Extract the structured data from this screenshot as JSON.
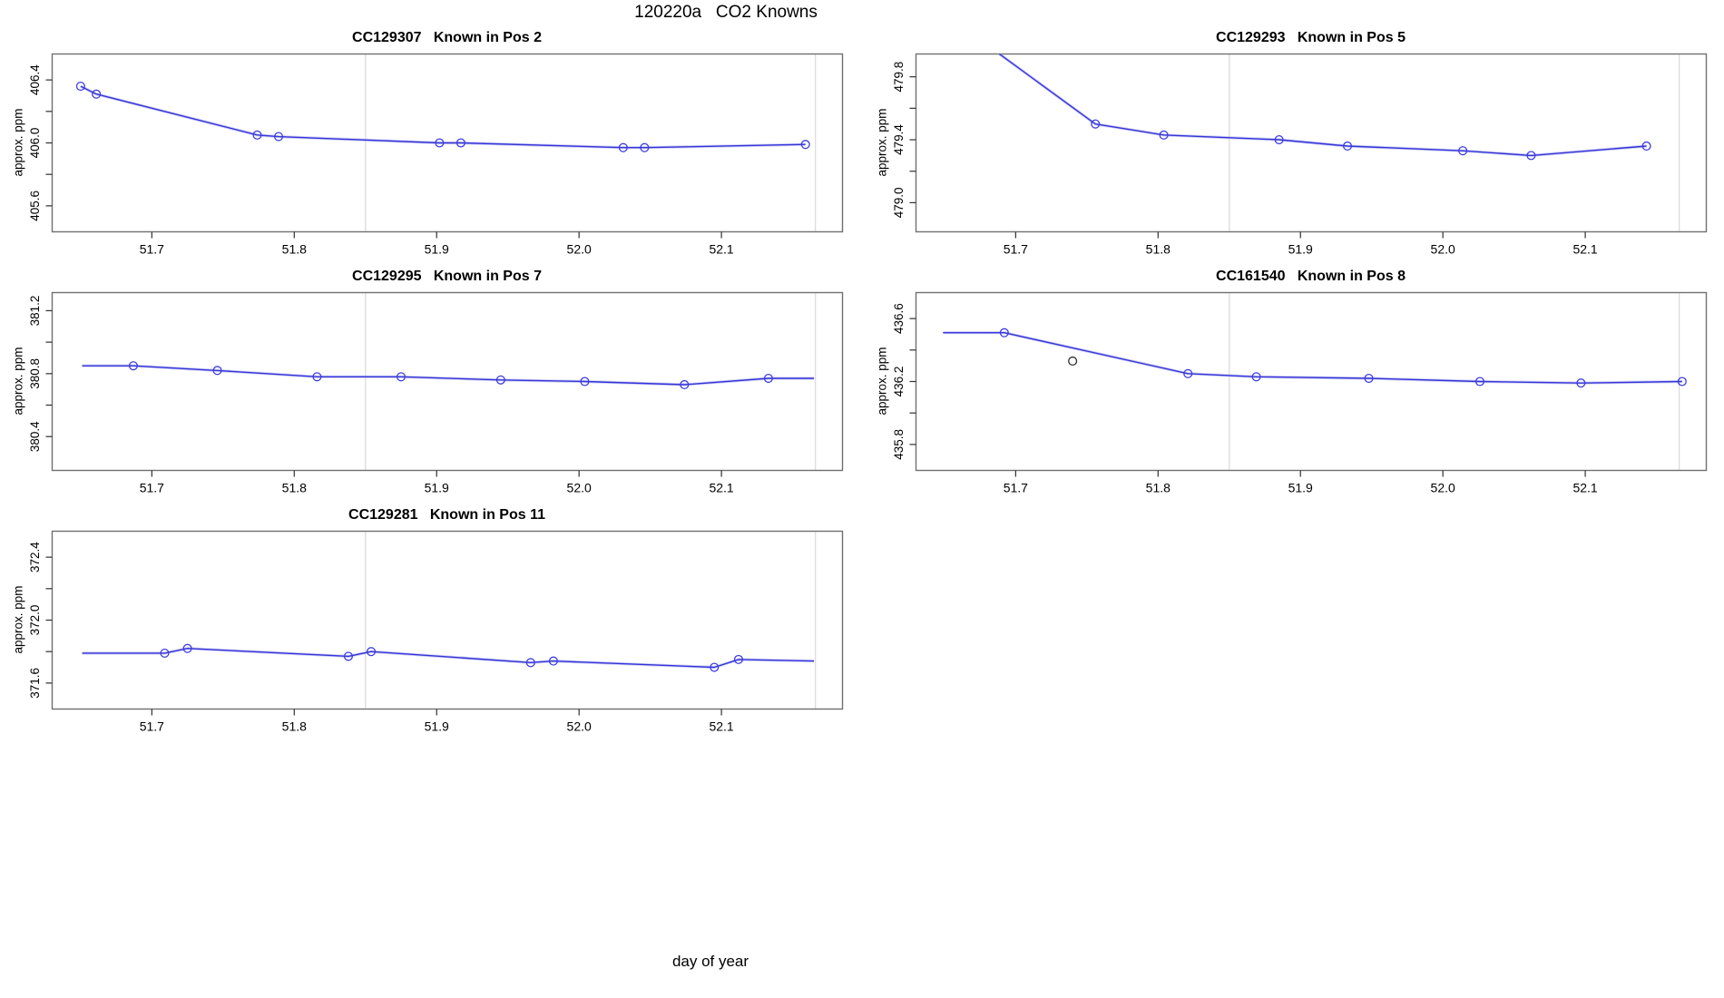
{
  "page_title": "120220a   CO2 Knowns",
  "xlabel": "day of year",
  "ylabel": "approx. ppm",
  "colors": {
    "line": "#3434d6",
    "line_soft": "#a8a8f0",
    "marker": "#3e3ede",
    "outlier": "#2a2a2a",
    "refline": "#dcdcdc",
    "border": "#707070",
    "tick": "#303030",
    "text": "#000000"
  },
  "axis": {
    "xlim": [
      51.63,
      52.185
    ],
    "xticks": [
      {
        "v": 51.7,
        "label": "51.7"
      },
      {
        "v": 51.8,
        "label": "51.8"
      },
      {
        "v": 51.9,
        "label": "51.9"
      },
      {
        "v": 52.0,
        "label": "52.0"
      },
      {
        "v": 52.1,
        "label": "52.1"
      }
    ],
    "reference_days": [
      51.85,
      52.166
    ]
  },
  "chart_data": [
    {
      "type": "line",
      "title": "CC129307   Known in Pos 2",
      "row": 0,
      "col": 0,
      "ylim": [
        405.435,
        406.565
      ],
      "yticks": [
        {
          "v": 405.6,
          "label": "405.6"
        },
        {
          "v": 405.8,
          "label": ""
        },
        {
          "v": 406.0,
          "label": "406.0"
        },
        {
          "v": 406.2,
          "label": ""
        },
        {
          "v": 406.4,
          "label": "406.4"
        }
      ],
      "points": {
        "x": [
          51.65,
          51.661,
          51.774,
          51.789,
          51.902,
          51.917,
          52.031,
          52.046,
          52.159
        ],
        "y": [
          406.36,
          406.31,
          406.05,
          406.04,
          406.0,
          406.0,
          405.97,
          405.97,
          405.99
        ]
      },
      "line": {
        "x": [
          51.65,
          51.661,
          51.774,
          51.789,
          51.902,
          51.917,
          52.031,
          52.046,
          52.159
        ],
        "y": [
          406.36,
          406.31,
          406.05,
          406.04,
          406.0,
          406.0,
          405.97,
          405.97,
          405.99
        ]
      },
      "outliers": []
    },
    {
      "type": "line",
      "title": "CC129293   Known in Pos 5",
      "row": 0,
      "col": 1,
      "ylim": [
        478.815,
        479.945
      ],
      "yticks": [
        {
          "v": 479.0,
          "label": "479.0"
        },
        {
          "v": 479.2,
          "label": ""
        },
        {
          "v": 479.4,
          "label": "479.4"
        },
        {
          "v": 479.6,
          "label": ""
        },
        {
          "v": 479.8,
          "label": "479.8"
        }
      ],
      "points": {
        "x": [
          51.756,
          51.804,
          51.885,
          51.933,
          52.014,
          52.062,
          52.143
        ],
        "y": [
          479.5,
          479.43,
          479.4,
          479.36,
          479.33,
          479.3,
          479.36
        ]
      },
      "line": {
        "x": [
          51.65,
          51.756,
          51.804,
          51.885,
          51.933,
          52.014,
          52.062,
          52.143
        ],
        "y": [
          480.2,
          479.5,
          479.43,
          479.4,
          479.36,
          479.33,
          479.3,
          479.36
        ]
      },
      "outliers": []
    },
    {
      "type": "line",
      "title": "CC129295   Known in Pos 7",
      "row": 1,
      "col": 0,
      "ylim": [
        380.185,
        381.315
      ],
      "yticks": [
        {
          "v": 380.4,
          "label": "380.4"
        },
        {
          "v": 380.6,
          "label": ""
        },
        {
          "v": 380.8,
          "label": "380.8"
        },
        {
          "v": 381.0,
          "label": ""
        },
        {
          "v": 381.2,
          "label": "381.2"
        }
      ],
      "points": {
        "x": [
          51.687,
          51.746,
          51.816,
          51.875,
          51.945,
          52.004,
          52.074,
          52.133
        ],
        "y": [
          380.85,
          380.82,
          380.78,
          380.78,
          380.76,
          380.75,
          380.73,
          380.77
        ]
      },
      "line": {
        "x": [
          51.651,
          51.687,
          51.746,
          51.816,
          51.875,
          51.945,
          52.004,
          52.074,
          52.133,
          52.165
        ],
        "y": [
          380.85,
          380.85,
          380.82,
          380.78,
          380.78,
          380.76,
          380.75,
          380.73,
          380.77,
          380.77
        ]
      },
      "outliers": []
    },
    {
      "type": "line",
      "title": "CC161540   Known in Pos 8",
      "row": 1,
      "col": 1,
      "ylim": [
        435.635,
        436.765
      ],
      "yticks": [
        {
          "v": 435.8,
          "label": "435.8"
        },
        {
          "v": 436.0,
          "label": ""
        },
        {
          "v": 436.2,
          "label": "436.2"
        },
        {
          "v": 436.4,
          "label": ""
        },
        {
          "v": 436.6,
          "label": "436.6"
        }
      ],
      "points": {
        "x": [
          51.692,
          51.821,
          51.869,
          51.948,
          52.026,
          52.097,
          52.168
        ],
        "y": [
          436.51,
          436.25,
          436.23,
          436.22,
          436.2,
          436.19,
          436.2
        ]
      },
      "line": {
        "x": [
          51.649,
          51.692,
          51.821,
          51.869,
          51.948,
          52.026,
          52.097,
          52.168
        ],
        "y": [
          436.51,
          436.51,
          436.25,
          436.23,
          436.22,
          436.2,
          436.19,
          436.2
        ]
      },
      "outliers": [
        {
          "x": 51.74,
          "y": 436.33
        }
      ]
    },
    {
      "type": "line",
      "title": "CC129281   Known in Pos 11",
      "row": 2,
      "col": 0,
      "ylim": [
        371.435,
        372.565
      ],
      "yticks": [
        {
          "v": 371.6,
          "label": "371.6"
        },
        {
          "v": 371.8,
          "label": ""
        },
        {
          "v": 372.0,
          "label": "372.0"
        },
        {
          "v": 372.2,
          "label": ""
        },
        {
          "v": 372.4,
          "label": "372.4"
        }
      ],
      "points": {
        "x": [
          51.709,
          51.725,
          51.838,
          51.854,
          51.966,
          51.982,
          52.095,
          52.112
        ],
        "y": [
          371.79,
          371.82,
          371.77,
          371.8,
          371.73,
          371.74,
          371.7,
          371.75
        ]
      },
      "line": {
        "x": [
          51.651,
          51.709,
          51.725,
          51.838,
          51.854,
          51.966,
          51.982,
          52.095,
          52.112,
          52.165
        ],
        "y": [
          371.79,
          371.79,
          371.82,
          371.77,
          371.8,
          371.73,
          371.74,
          371.7,
          371.75,
          371.74
        ]
      },
      "outliers": []
    }
  ]
}
